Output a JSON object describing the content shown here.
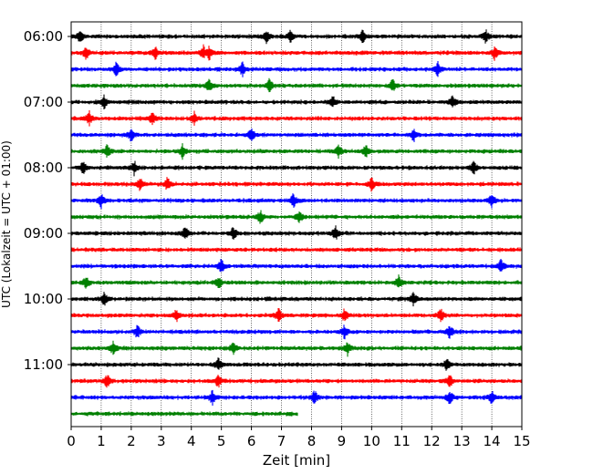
{
  "chart_data": {
    "type": "line",
    "title": "",
    "xlabel": "Zeit  [min]",
    "ylabel": "UTC (Lokalzeit = UTC + 01:00)",
    "xlim": [
      0,
      15
    ],
    "x_ticks": [
      "0",
      "1",
      "2",
      "3",
      "4",
      "5",
      "6",
      "7",
      "8",
      "9",
      "10",
      "11",
      "12",
      "13",
      "14",
      "15"
    ],
    "y_tick_labels": [
      "06:00",
      "07:00",
      "08:00",
      "09:00",
      "10:00",
      "11:00"
    ],
    "grid": "vertical dotted at each minute",
    "line_interval_minutes": 15,
    "start_time": "06:00",
    "colors": [
      "#000000",
      "#ff0000",
      "#0000ff",
      "#008000"
    ],
    "last_trace_end_minute": 7.55,
    "traces": [
      {
        "start": "06:00",
        "events_min": [
          0.3,
          6.5,
          7.3,
          9.7,
          13.8
        ]
      },
      {
        "start": "06:15",
        "events_min": [
          0.5,
          2.8,
          4.4,
          4.6,
          14.1
        ]
      },
      {
        "start": "06:30",
        "events_min": [
          1.5,
          5.7,
          12.2
        ]
      },
      {
        "start": "06:45",
        "events_min": [
          4.6,
          6.6,
          10.7
        ]
      },
      {
        "start": "07:00",
        "events_min": [
          1.1,
          8.7,
          12.7
        ]
      },
      {
        "start": "07:15",
        "events_min": [
          0.6,
          2.7,
          4.1
        ]
      },
      {
        "start": "07:30",
        "events_min": [
          2.0,
          6.0,
          11.4
        ]
      },
      {
        "start": "07:45",
        "events_min": [
          1.2,
          3.7,
          8.9,
          9.8
        ]
      },
      {
        "start": "08:00",
        "events_min": [
          0.4,
          2.1,
          13.4
        ]
      },
      {
        "start": "08:15",
        "events_min": [
          2.3,
          3.2,
          10.0
        ]
      },
      {
        "start": "08:30",
        "events_min": [
          1.0,
          7.4,
          14.0
        ]
      },
      {
        "start": "08:45",
        "events_min": [
          6.3,
          7.6
        ]
      },
      {
        "start": "09:00",
        "events_min": [
          3.8,
          5.4,
          8.8
        ]
      },
      {
        "start": "09:15",
        "events_min": []
      },
      {
        "start": "09:30",
        "events_min": [
          5.0,
          14.3
        ]
      },
      {
        "start": "09:45",
        "events_min": [
          0.5,
          4.9,
          10.9
        ]
      },
      {
        "start": "10:00",
        "events_min": [
          1.1,
          11.4
        ]
      },
      {
        "start": "10:15",
        "events_min": [
          3.5,
          6.9,
          9.1,
          12.3
        ]
      },
      {
        "start": "10:30",
        "events_min": [
          2.2,
          9.1,
          12.6
        ]
      },
      {
        "start": "10:45",
        "events_min": [
          1.4,
          5.4,
          9.2
        ]
      },
      {
        "start": "11:00",
        "events_min": [
          4.9,
          12.5
        ]
      },
      {
        "start": "11:15",
        "events_min": [
          1.2,
          4.9,
          12.6
        ]
      },
      {
        "start": "11:30",
        "events_min": [
          4.7,
          8.1,
          12.6,
          14.0
        ]
      },
      {
        "start": "11:45",
        "events_min": []
      }
    ]
  }
}
